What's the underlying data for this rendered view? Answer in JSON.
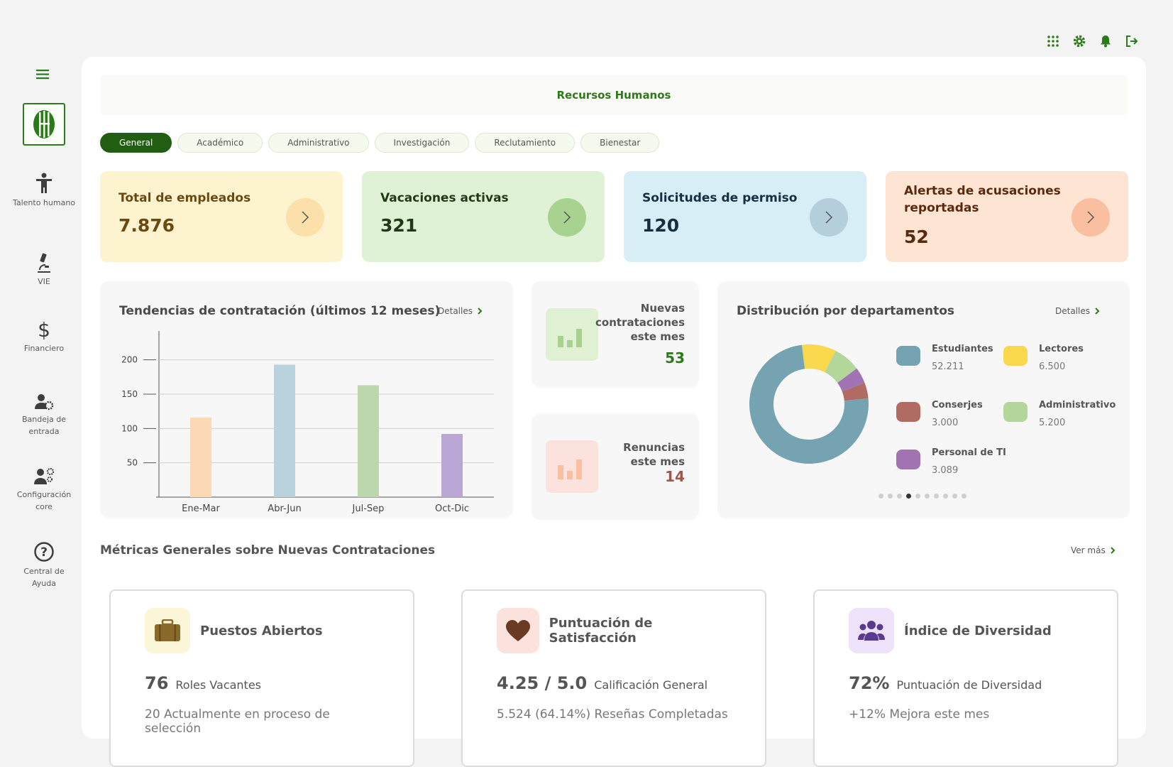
{
  "app": {
    "title": "Recursos Humanos"
  },
  "colors": {
    "brand": "#2d7a1b",
    "brandDark": "#225e12"
  },
  "sidebar": {
    "items": [
      {
        "label": "Talento humano",
        "icon": "person-icon"
      },
      {
        "label": "VIE",
        "icon": "microscope-icon"
      },
      {
        "label": "Financiero",
        "icon": "dollar-icon"
      },
      {
        "label": "Bandeja de entrada",
        "icon": "user-gear-icon"
      },
      {
        "label": "Configuración core",
        "icon": "users-gear-icon"
      },
      {
        "label": "Central de Ayuda",
        "icon": "help-icon"
      }
    ]
  },
  "tabs": [
    "General",
    "Académico",
    "Administrativo",
    "Investigación",
    "Reclutamiento",
    "Bienestar"
  ],
  "kpis": [
    {
      "title": "Total de empleados",
      "value": "7.876",
      "bg": "#fdf3cf",
      "fg": "#6b4a12",
      "arrow": "#fbe0aa"
    },
    {
      "title": "Vacaciones activas",
      "value": "321",
      "bg": "#e0f2d6",
      "fg": "#1f3a14",
      "arrow": "#a8d28f"
    },
    {
      "title": "Solicitudes de permiso",
      "value": "120",
      "bg": "#d8eef6",
      "fg": "#143040",
      "arrow": "#b4cfd9"
    },
    {
      "title": "Alertas de acusaciones reportadas",
      "value": "52",
      "bg": "#fde4d3",
      "fg": "#5a2a0e",
      "arrow": "#f9bfa0"
    }
  ],
  "trend": {
    "title": "Tendencias de contratación (últimos 12 meses)",
    "details": "Detalles"
  },
  "chart_data": [
    {
      "type": "bar",
      "title": "Tendencias de contratación (últimos 12 meses)",
      "categories": [
        "Ene-Mar",
        "Abr-Jun",
        "Jul-Sep",
        "Oct-Dic"
      ],
      "values": [
        116,
        193,
        163,
        92
      ],
      "colors": [
        "#fbd9b6",
        "#b8d3db",
        "#bcd6ae",
        "#b9a6d4"
      ],
      "yticks": [
        50,
        100,
        150,
        200
      ],
      "ylim": [
        0,
        240
      ]
    },
    {
      "type": "pie",
      "title": "Distribución por departamentos",
      "categories": [
        "Estudiantes",
        "Lectores",
        "Conserjes",
        "Administrativo",
        "Personal de TI"
      ],
      "values": [
        52211,
        6500,
        3000,
        5200,
        3089
      ],
      "colors": [
        "#75a3b1",
        "#f8d84d",
        "#b06b63",
        "#b3d79a",
        "#a173b3"
      ]
    }
  ],
  "newhires": {
    "title": "Nuevas contrataciones este mes",
    "value": "53"
  },
  "resign": {
    "title": "Renuncias este mes",
    "value": "14"
  },
  "dist": {
    "title": "Distribución por departamentos",
    "details": "Detalles",
    "legend": [
      {
        "name": "Estudiantes",
        "count": "52.211"
      },
      {
        "name": "Lectores",
        "count": "6.500"
      },
      {
        "name": "Conserjes",
        "count": "3.000"
      },
      {
        "name": "Administrativo",
        "count": "5.200"
      },
      {
        "name": "Personal de TI",
        "count": "3.089"
      }
    ]
  },
  "metrics": {
    "title": "Métricas Generales sobre Nuevas Contrataciones",
    "more": "Ver más",
    "cards": [
      {
        "title": "Puestos Abiertos",
        "big": "76",
        "label": "Roles Vacantes",
        "sub": "20 Actualmente en proceso de selección"
      },
      {
        "title": "Puntuación de Satisfacción",
        "big": "4.25 / 5.0",
        "label": "Calificación General",
        "sub": "5.524 (64.14%) Reseñas Completadas"
      },
      {
        "title": "Índice de Diversidad",
        "big": "72%",
        "label": "Puntuación de Diversidad",
        "sub": "+12% Mejora este mes"
      }
    ]
  }
}
